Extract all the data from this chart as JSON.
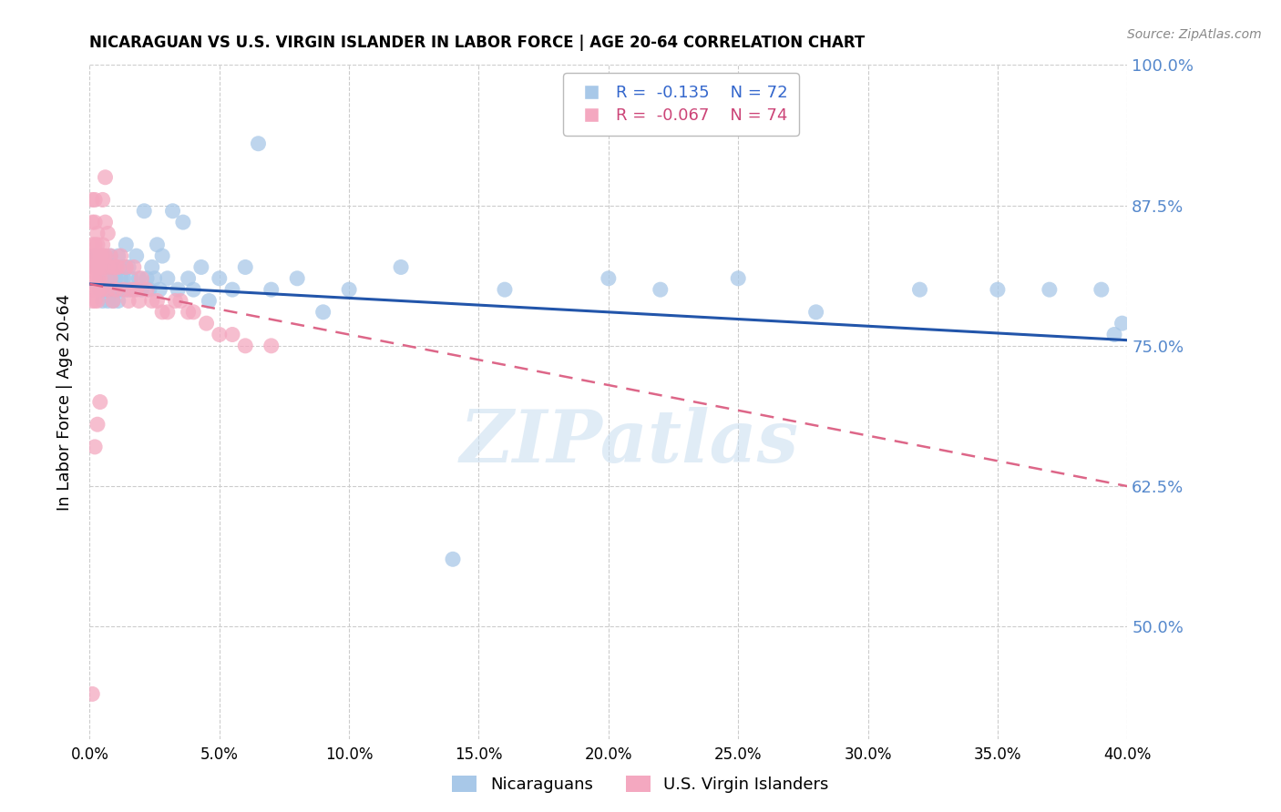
{
  "title": "NICARAGUAN VS U.S. VIRGIN ISLANDER IN LABOR FORCE | AGE 20-64 CORRELATION CHART",
  "source": "Source: ZipAtlas.com",
  "ylabel": "In Labor Force | Age 20-64",
  "r_nicaraguan": -0.135,
  "n_nicaraguan": 72,
  "r_virgin": -0.067,
  "n_virgin": 74,
  "blue_color": "#a8c8e8",
  "pink_color": "#f4a8c0",
  "trend_blue": "#2255aa",
  "trend_pink": "#dd6688",
  "watermark": "ZIPatlas",
  "xmin": 0.0,
  "xmax": 0.4,
  "ymin": 0.4,
  "ymax": 1.0,
  "blue_x": [
    0.002,
    0.003,
    0.004,
    0.004,
    0.005,
    0.005,
    0.005,
    0.006,
    0.006,
    0.007,
    0.007,
    0.008,
    0.008,
    0.009,
    0.009,
    0.009,
    0.01,
    0.01,
    0.01,
    0.011,
    0.011,
    0.011,
    0.012,
    0.012,
    0.013,
    0.013,
    0.014,
    0.014,
    0.015,
    0.015,
    0.016,
    0.017,
    0.018,
    0.019,
    0.02,
    0.021,
    0.022,
    0.023,
    0.024,
    0.025,
    0.026,
    0.027,
    0.028,
    0.03,
    0.032,
    0.034,
    0.036,
    0.038,
    0.04,
    0.043,
    0.046,
    0.05,
    0.055,
    0.06,
    0.065,
    0.07,
    0.08,
    0.09,
    0.1,
    0.12,
    0.14,
    0.16,
    0.2,
    0.22,
    0.25,
    0.28,
    0.32,
    0.35,
    0.37,
    0.39,
    0.395,
    0.398
  ],
  "blue_y": [
    0.83,
    0.82,
    0.81,
    0.8,
    0.83,
    0.8,
    0.79,
    0.82,
    0.8,
    0.81,
    0.79,
    0.8,
    0.83,
    0.8,
    0.81,
    0.79,
    0.8,
    0.82,
    0.81,
    0.8,
    0.83,
    0.79,
    0.81,
    0.8,
    0.82,
    0.81,
    0.8,
    0.84,
    0.8,
    0.82,
    0.81,
    0.8,
    0.83,
    0.81,
    0.8,
    0.87,
    0.81,
    0.8,
    0.82,
    0.81,
    0.84,
    0.8,
    0.83,
    0.81,
    0.87,
    0.8,
    0.86,
    0.81,
    0.8,
    0.82,
    0.79,
    0.81,
    0.8,
    0.82,
    0.93,
    0.8,
    0.81,
    0.78,
    0.8,
    0.82,
    0.56,
    0.8,
    0.81,
    0.8,
    0.81,
    0.78,
    0.8,
    0.8,
    0.8,
    0.8,
    0.76,
    0.77
  ],
  "pink_x": [
    0.001,
    0.001,
    0.001,
    0.001,
    0.001,
    0.001,
    0.001,
    0.001,
    0.002,
    0.002,
    0.002,
    0.002,
    0.002,
    0.002,
    0.002,
    0.002,
    0.002,
    0.003,
    0.003,
    0.003,
    0.003,
    0.003,
    0.003,
    0.003,
    0.003,
    0.004,
    0.004,
    0.004,
    0.004,
    0.005,
    0.005,
    0.005,
    0.005,
    0.005,
    0.006,
    0.006,
    0.006,
    0.007,
    0.007,
    0.007,
    0.008,
    0.008,
    0.009,
    0.009,
    0.01,
    0.01,
    0.011,
    0.012,
    0.013,
    0.014,
    0.015,
    0.016,
    0.017,
    0.018,
    0.019,
    0.02,
    0.022,
    0.024,
    0.026,
    0.028,
    0.03,
    0.033,
    0.035,
    0.038,
    0.04,
    0.045,
    0.05,
    0.055,
    0.06,
    0.07,
    0.001,
    0.002,
    0.003,
    0.004
  ],
  "pink_y": [
    0.82,
    0.84,
    0.86,
    0.88,
    0.83,
    0.8,
    0.79,
    0.81,
    0.82,
    0.86,
    0.84,
    0.88,
    0.82,
    0.8,
    0.83,
    0.81,
    0.79,
    0.82,
    0.84,
    0.85,
    0.8,
    0.83,
    0.81,
    0.79,
    0.82,
    0.83,
    0.81,
    0.82,
    0.8,
    0.88,
    0.84,
    0.82,
    0.8,
    0.83,
    0.9,
    0.86,
    0.83,
    0.85,
    0.82,
    0.8,
    0.81,
    0.83,
    0.82,
    0.79,
    0.8,
    0.82,
    0.82,
    0.83,
    0.8,
    0.82,
    0.79,
    0.8,
    0.82,
    0.8,
    0.79,
    0.81,
    0.8,
    0.79,
    0.79,
    0.78,
    0.78,
    0.79,
    0.79,
    0.78,
    0.78,
    0.77,
    0.76,
    0.76,
    0.75,
    0.75,
    0.44,
    0.66,
    0.68,
    0.7
  ],
  "blue_trend_x0": 0.0,
  "blue_trend_y0": 0.805,
  "blue_trend_x1": 0.4,
  "blue_trend_y1": 0.755,
  "pink_trend_x0": 0.0,
  "pink_trend_y0": 0.805,
  "pink_trend_x1": 0.4,
  "pink_trend_y1": 0.625
}
